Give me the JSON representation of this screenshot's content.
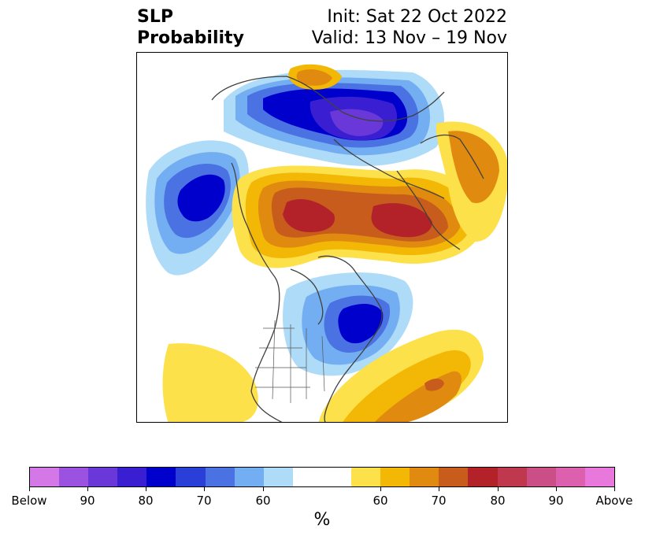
{
  "title": {
    "line1_left": "SLP",
    "line2_left": "Probability",
    "line1_right": "Init: Sat 22 Oct 2022",
    "line2_right": "Valid: 13 Nov – 19 Nov"
  },
  "colorbar": {
    "unit": "%",
    "below_colors": [
      "#d478e8",
      "#9b52e0",
      "#6a38d8",
      "#3a1fd2",
      "#0000cd",
      "#2a3ed8",
      "#4a72e2",
      "#74aef2",
      "#aedbf8"
    ],
    "neutral_color": "#ffffff",
    "above_colors": [
      "#fde14a",
      "#f3b805",
      "#e08b10",
      "#c85c1c",
      "#b22228",
      "#c0384e",
      "#cc4e86",
      "#dc60ae",
      "#e878dc"
    ],
    "tick_labels": [
      "Below",
      "90",
      "80",
      "70",
      "60",
      "60",
      "70",
      "80",
      "90",
      "Above"
    ]
  },
  "map": {
    "projection": "north polar stereographic",
    "features": [
      "coastlines",
      "country borders",
      "US state borders"
    ]
  }
}
